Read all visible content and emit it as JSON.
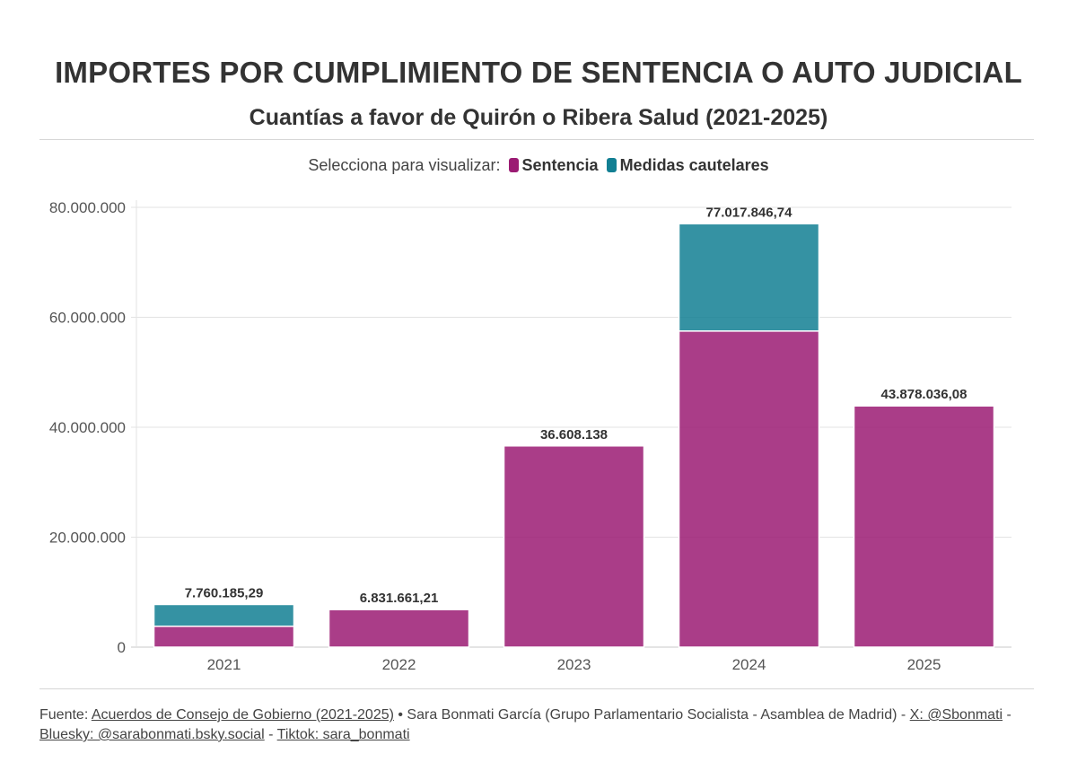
{
  "header": {
    "title": "IMPORTES POR CUMPLIMIENTO DE SENTENCIA O AUTO JUDICIAL",
    "subtitle": "Cuantías a favor de Quirón o Ribera Salud (2021-2025)"
  },
  "legend": {
    "prompt": "Selecciona para visualizar:",
    "items": [
      {
        "label": "Sentencia",
        "color": "#9b1b73"
      },
      {
        "label": "Medidas cautelares",
        "color": "#127f93"
      }
    ]
  },
  "chart_data": {
    "type": "bar",
    "stacked": true,
    "categories": [
      "2021",
      "2022",
      "2023",
      "2024",
      "2025"
    ],
    "series": [
      {
        "name": "Sentencia",
        "color": "#9b1b73",
        "values": [
          3800000,
          6831661.21,
          36608138,
          57500000,
          43878036.08
        ]
      },
      {
        "name": "Medidas cautelares",
        "color": "#127f93",
        "values": [
          3960185.29,
          0,
          0,
          19517846.74,
          0
        ]
      }
    ],
    "totals_labels": [
      "7.760.185,29",
      "6.831.661,21",
      "36.608.138",
      "77.017.846,74",
      "43.878.036,08"
    ],
    "totals": [
      7760185.29,
      6831661.21,
      36608138,
      77017846.74,
      43878036.08
    ],
    "y_ticks": [
      0,
      20000000,
      40000000,
      60000000,
      80000000
    ],
    "y_tick_labels": [
      "0",
      "20.000.000",
      "40.000.000",
      "60.000.000",
      "80.000.000"
    ],
    "ylim": [
      0,
      80000000
    ],
    "grid": true,
    "legend_position": "top-center"
  },
  "footer": {
    "source_prefix": "Fuente:",
    "source_link": "Acuerdos de Consejo de Gobierno (2021-2025)",
    "author": " • Sara Bonmati García (Grupo Parlamentario Socialista - Asamblea de Madrid) - ",
    "x_link": "X: @Sbonmati",
    "sep1": " - ",
    "bluesky_link": "Bluesky: @sarabonmati.bsky.social",
    "sep2": " - ",
    "tiktok_link": "Tiktok: sara_bonmati"
  }
}
